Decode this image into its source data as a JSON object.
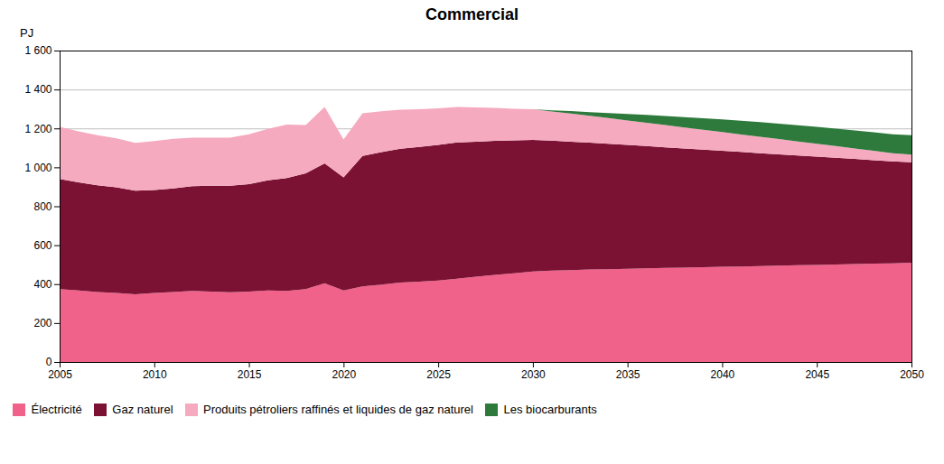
{
  "chart_data": {
    "type": "area",
    "stacked": true,
    "title": "Commercial",
    "y_label": "PJ",
    "x": [
      2005,
      2006,
      2007,
      2008,
      2009,
      2010,
      2011,
      2012,
      2013,
      2014,
      2015,
      2016,
      2017,
      2018,
      2019,
      2020,
      2021,
      2022,
      2023,
      2024,
      2025,
      2026,
      2027,
      2028,
      2029,
      2030,
      2031,
      2032,
      2033,
      2034,
      2035,
      2036,
      2037,
      2038,
      2039,
      2040,
      2041,
      2042,
      2043,
      2044,
      2045,
      2046,
      2047,
      2048,
      2049,
      2050
    ],
    "series": [
      {
        "name": "Électricité",
        "color": "#F0628A",
        "values": [
          375,
          368,
          360,
          355,
          348,
          355,
          360,
          365,
          362,
          358,
          362,
          368,
          365,
          374,
          405,
          368,
          388,
          398,
          408,
          413,
          418,
          428,
          438,
          448,
          456,
          465,
          469,
          472,
          475,
          477,
          479,
          481,
          483,
          485,
          487,
          489,
          491,
          493,
          495,
          497,
          499,
          501,
          503,
          505,
          507,
          510
        ]
      },
      {
        "name": "Gaz naturel",
        "color": "#7B1234",
        "values": [
          565,
          555,
          548,
          542,
          532,
          528,
          532,
          538,
          543,
          548,
          552,
          565,
          580,
          595,
          615,
          580,
          670,
          680,
          688,
          692,
          697,
          700,
          694,
          688,
          682,
          676,
          668,
          660,
          652,
          644,
          636,
          628,
          620,
          612,
          604,
          596,
          588,
          580,
          572,
          564,
          556,
          548,
          540,
          532,
          524,
          516
        ]
      },
      {
        "name": "Produits pétroliers raffinés et liquides de gaz naturel",
        "color": "#F5AABF",
        "values": [
          268,
          262,
          257,
          252,
          246,
          252,
          255,
          250,
          248,
          246,
          256,
          265,
          275,
          248,
          290,
          195,
          220,
          210,
          200,
          194,
          188,
          182,
          176,
          170,
          163,
          157,
          150,
          144,
          138,
          132,
          126,
          120,
          114,
          108,
          102,
          96,
          90,
          84,
          78,
          72,
          66,
          60,
          54,
          48,
          42,
          40
        ]
      },
      {
        "name": "Les biocarburants",
        "color": "#2E7A3C",
        "values": [
          0,
          0,
          0,
          0,
          0,
          0,
          0,
          0,
          0,
          0,
          0,
          0,
          0,
          0,
          0,
          0,
          0,
          0,
          0,
          0,
          0,
          0,
          0,
          0,
          0,
          0,
          6,
          13,
          19,
          26,
          33,
          40,
          47,
          53,
          59,
          65,
          70,
          75,
          79,
          83,
          87,
          90,
          93,
          95,
          97,
          99
        ]
      }
    ],
    "xlim": [
      2005,
      2050
    ],
    "ylim": [
      0,
      1600
    ],
    "xticks": [
      2005,
      2010,
      2015,
      2020,
      2025,
      2030,
      2035,
      2040,
      2045,
      2050
    ],
    "yticks": [
      0,
      200,
      400,
      600,
      800,
      {
        "value": 1000,
        "label": "1 000"
      },
      {
        "value": 1200,
        "label": "1 200"
      },
      {
        "value": 1400,
        "label": "1 400"
      },
      {
        "value": 1600,
        "label": "1 600"
      }
    ],
    "grid": true,
    "legend": "bottom"
  }
}
